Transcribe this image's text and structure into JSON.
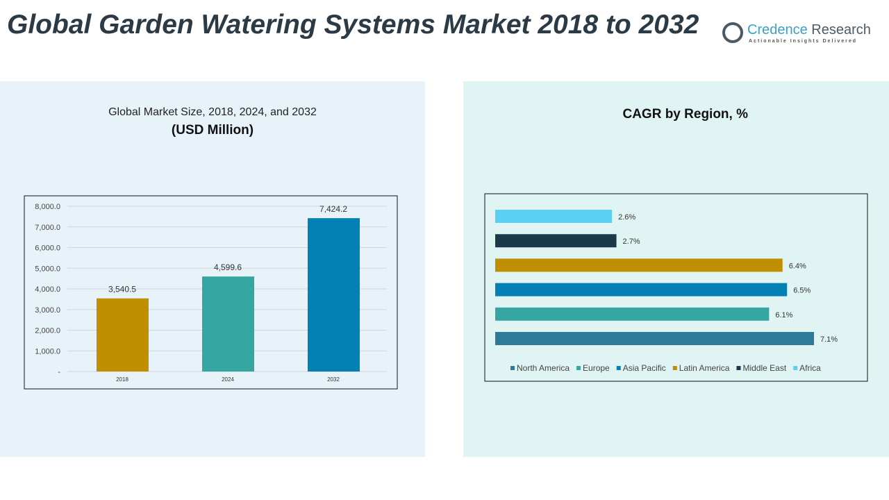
{
  "title": "Global Garden Watering Systems Market 2018 to 2032",
  "logo": {
    "name_a": "Credence",
    "name_b": " Research",
    "tagline": "Actionable Insights Delivered"
  },
  "chart_data": [
    {
      "type": "bar",
      "title": "Global Market Size, 2018, 2024, and 2032",
      "subtitle": "(USD Million)",
      "categories": [
        "2018",
        "2024",
        "2032"
      ],
      "values": [
        3540.5,
        4599.6,
        7424.2
      ],
      "data_labels": [
        "3,540.5",
        "4,599.6",
        "7,424.2"
      ],
      "colors": [
        "#bf8f00",
        "#35a6a1",
        "#0381b4"
      ],
      "ylim": [
        0,
        8000
      ],
      "yticks": [
        "-",
        "1,000.0",
        "2,000.0",
        "3,000.0",
        "4,000.0",
        "5,000.0",
        "6,000.0",
        "7,000.0",
        "8,000.0"
      ],
      "grid": true
    },
    {
      "type": "bar",
      "orientation": "horizontal",
      "title": "CAGR by Region, %",
      "series": [
        {
          "name": "North America",
          "value": 7.1,
          "label": "7.1%",
          "color": "#2e7a99"
        },
        {
          "name": "Europe",
          "value": 6.1,
          "label": "6.1%",
          "color": "#35a6a1"
        },
        {
          "name": "Asia Pacific",
          "value": 6.5,
          "label": "6.5%",
          "color": "#0381b4"
        },
        {
          "name": "Latin America",
          "value": 6.4,
          "label": "6.4%",
          "color": "#bf8f00"
        },
        {
          "name": "Middle East",
          "value": 2.7,
          "label": "2.7%",
          "color": "#1a3a4a"
        },
        {
          "name": "Africa",
          "value": 2.6,
          "label": "2.6%",
          "color": "#5ccff5"
        }
      ],
      "legend": "bottom"
    }
  ]
}
